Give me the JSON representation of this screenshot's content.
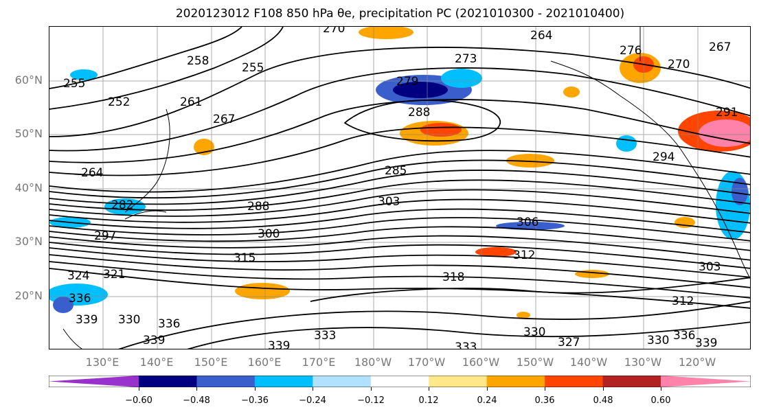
{
  "title": "2020123012 F108 850 hPa θe, precipitation PC (2021010300 - 2021010400)",
  "map": {
    "lat_labels": [
      "60°N",
      "50°N",
      "40°N",
      "30°N",
      "20°N"
    ],
    "lon_labels": [
      "130°E",
      "140°E",
      "150°E",
      "160°E",
      "170°E",
      "180°W",
      "170°W",
      "160°W",
      "150°W",
      "140°W",
      "130°W",
      "120°W"
    ],
    "contour_labels": [
      "255",
      "258",
      "252",
      "255",
      "261",
      "267",
      "264",
      "270",
      "273",
      "279",
      "288",
      "264",
      "267",
      "270",
      "291",
      "294",
      "285",
      "288",
      "303",
      "306",
      "300",
      "297",
      "315",
      "312",
      "318",
      "324",
      "321",
      "336",
      "339",
      "330",
      "336",
      "339",
      "339",
      "333",
      "333",
      "330",
      "327",
      "330",
      "336",
      "339",
      "312",
      "303",
      "282",
      "276"
    ]
  },
  "colorbar": {
    "colors": [
      "#9932cc",
      "#000080",
      "#3a5fcd",
      "#00bfff",
      "#b0e2ff",
      "#ffffff",
      "#ffe78a",
      "#ffa500",
      "#ff4500",
      "#b22222",
      "#ff82ab"
    ],
    "ticks": [
      "−0.60",
      "−0.48",
      "−0.36",
      "−0.24",
      "−0.12",
      "0.12",
      "0.24",
      "0.36",
      "0.48",
      "0.60"
    ]
  }
}
